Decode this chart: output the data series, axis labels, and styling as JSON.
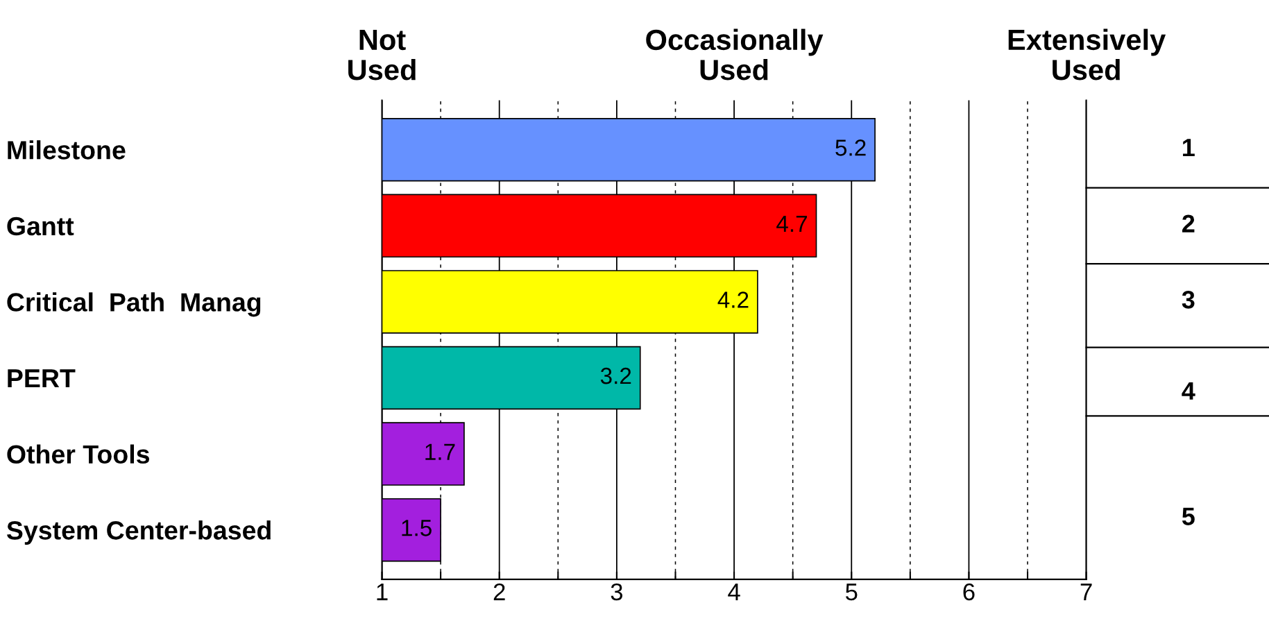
{
  "chart_data": {
    "type": "bar",
    "orientation": "horizontal",
    "categories": [
      "Milestone",
      "Gantt",
      "Critical  Path  Manag",
      "PERT",
      "Other Tools",
      "System Center-based"
    ],
    "values": [
      5.2,
      4.7,
      4.2,
      3.2,
      1.7,
      1.5
    ],
    "colors": [
      "#6691ff",
      "#ff0000",
      "#ffff00",
      "#00b8a8",
      "#a31fde",
      "#a31fde"
    ],
    "data_labels": true,
    "xlim": [
      1,
      7
    ],
    "xticks": [
      1,
      {
        "value": 1.5,
        "label": null
      },
      2,
      {
        "value": 2.5,
        "label": null
      },
      3,
      {
        "value": 3.5,
        "label": null
      },
      4,
      {
        "value": 4.5,
        "label": null
      },
      5,
      {
        "value": 5.5,
        "label": null
      },
      6,
      {
        "value": 6.5,
        "label": null
      },
      7
    ],
    "grid": "x",
    "annotations": [
      "Not\nUsed",
      "Occasionally\nUsed",
      "Extensively\nUsed",
      "1",
      "2",
      "3",
      "4",
      "5"
    ]
  }
}
